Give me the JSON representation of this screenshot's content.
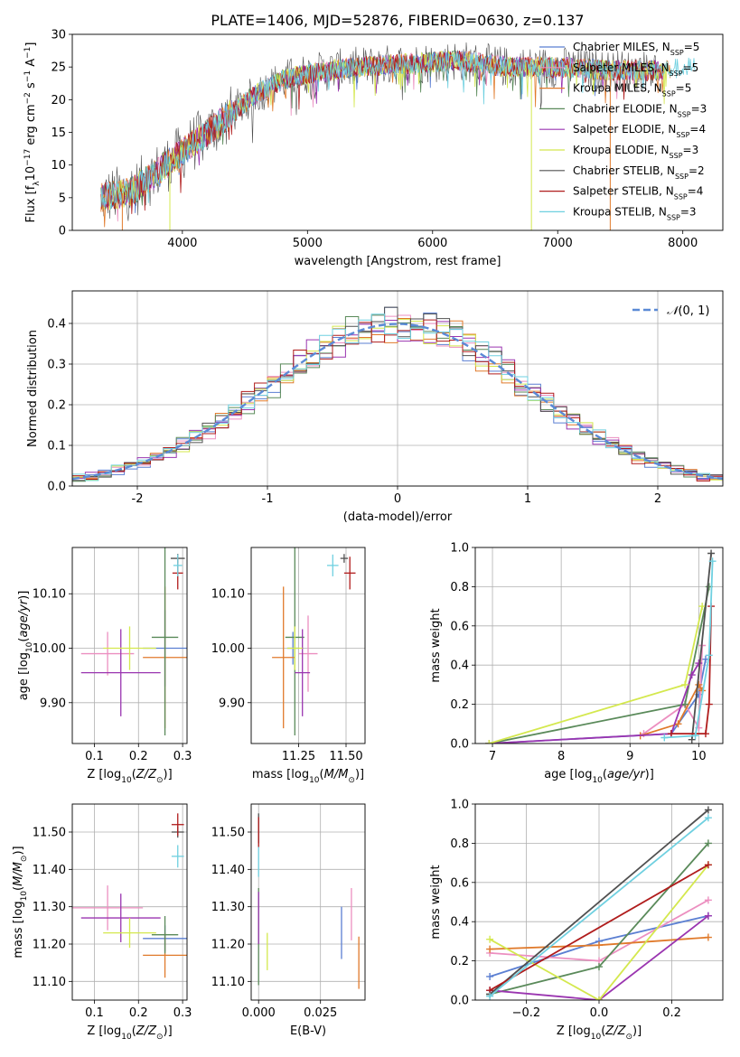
{
  "figure_title": "PLATE=1406, MJD=52876, FIBERID=0630, z=0.137",
  "models": [
    {
      "label": "Chabrier MILES, N$_{SSP}$=5",
      "label_text": "Chabrier MILES, N",
      "sub": "SSP",
      "suffix": "=5",
      "color": "#5b7fd2"
    },
    {
      "label_text": "Salpeter MILES, N",
      "sub": "SSP",
      "suffix": "=5",
      "color": "#ec8fc0"
    },
    {
      "label_text": "Kroupa MILES, N",
      "sub": "SSP",
      "suffix": "=5",
      "color": "#e07a2b"
    },
    {
      "label_text": "Chabrier ELODIE, N",
      "sub": "SSP",
      "suffix": "=3",
      "color": "#5a8a5a"
    },
    {
      "label_text": "Salpeter ELODIE, N",
      "sub": "SSP",
      "suffix": "=4",
      "color": "#9a35b0"
    },
    {
      "label_text": "Kroupa ELODIE, N",
      "sub": "SSP",
      "suffix": "=3",
      "color": "#d4e84e"
    },
    {
      "label_text": "Chabrier STELIB, N",
      "sub": "SSP",
      "suffix": "=2",
      "color": "#505050"
    },
    {
      "label_text": "Salpeter STELIB, N",
      "sub": "SSP",
      "suffix": "=4",
      "color": "#b01c1c"
    },
    {
      "label_text": "Kroupa STELIB, N",
      "sub": "SSP",
      "suffix": "=3",
      "color": "#6fd0e0"
    }
  ],
  "chart_data": [
    {
      "id": "spectrum",
      "type": "line",
      "xlabel": "wavelength [Angstrom, rest frame]",
      "ylabel": "Flux [f_λ10^-17 erg cm^-2 s^-1 A^-1]",
      "xlim": [
        3120,
        8320
      ],
      "ylim": [
        0,
        30
      ],
      "xticks": [
        4000,
        5000,
        6000,
        7000,
        8000
      ],
      "yticks": [
        0,
        5,
        10,
        15,
        20,
        25,
        30
      ],
      "grid": false,
      "legend_position": "top-right",
      "continuum_points": [
        [
          3350,
          5
        ],
        [
          3600,
          6
        ],
        [
          3800,
          9
        ],
        [
          4000,
          12
        ],
        [
          4200,
          15
        ],
        [
          4400,
          18
        ],
        [
          4600,
          21
        ],
        [
          4800,
          23
        ],
        [
          5000,
          24
        ],
        [
          5200,
          24.5
        ],
        [
          5400,
          25
        ],
        [
          5800,
          25.5
        ],
        [
          6200,
          26
        ],
        [
          6600,
          25
        ],
        [
          7000,
          25
        ],
        [
          7400,
          24.5
        ],
        [
          7800,
          24.5
        ],
        [
          8100,
          25
        ]
      ],
      "spikes_down_at": [
        [
          3520,
          0
        ],
        [
          3900,
          0
        ],
        [
          6790,
          0
        ],
        [
          7420,
          0
        ]
      ]
    },
    {
      "id": "residual-histogram",
      "type": "histogram",
      "xlabel": "(data-model)/error",
      "ylabel": "Normed distribution",
      "xlim": [
        -2.5,
        2.5
      ],
      "ylim": [
        0,
        0.48
      ],
      "xticks": [
        -2,
        -1,
        0,
        1,
        2
      ],
      "yticks": [
        0.0,
        0.1,
        0.2,
        0.3,
        0.4
      ],
      "grid": true,
      "bin_width": 0.1,
      "reference_curve": {
        "name": "N(0,1)",
        "label_text": "(0, 1)",
        "style": "dashed",
        "color": "#5b8ad6"
      },
      "legend_position": "top-right"
    },
    {
      "id": "age-vs-Z",
      "type": "errorbar",
      "xlabel": "Z [log10(Z/Z_sun)]",
      "ylabel": "age [log10(age/yr)]",
      "xlim": [
        0.05,
        0.31
      ],
      "ylim": [
        9.825,
        10.185
      ],
      "xticks": [
        0.1,
        0.2,
        0.3
      ],
      "yticks": [
        9.9,
        10.0,
        10.1
      ],
      "points": [
        {
          "m": 0,
          "x": 0.26,
          "y": 10.0,
          "xe": 0.05,
          "ye": 0.07
        },
        {
          "m": 1,
          "x": 0.13,
          "y": 9.99,
          "xe": 0.06,
          "ye": 0.04
        },
        {
          "m": 2,
          "x": 0.26,
          "y": 9.983,
          "xe": 0.05,
          "ye": 0.13
        },
        {
          "m": 3,
          "x": 0.26,
          "y": 10.02,
          "xe": 0.03,
          "ye": 0.18
        },
        {
          "m": 4,
          "x": 0.16,
          "y": 9.955,
          "xe": 0.09,
          "ye": 0.08
        },
        {
          "m": 5,
          "x": 0.18,
          "y": 10.0,
          "xe": 0.06,
          "ye": 0.04
        },
        {
          "m": 6,
          "x": 0.289,
          "y": 10.165,
          "xe": 0.016,
          "ye": 0.008
        },
        {
          "m": 7,
          "x": 0.289,
          "y": 10.138,
          "xe": 0.012,
          "ye": 0.03
        },
        {
          "m": 8,
          "x": 0.289,
          "y": 10.152,
          "xe": 0.01,
          "ye": 0.02
        }
      ]
    },
    {
      "id": "age-vs-mass",
      "type": "errorbar",
      "xlabel": "mass [log10(M/M_sun)]",
      "ylabel": "",
      "xlim": [
        11.0,
        11.6
      ],
      "ylim": [
        9.825,
        10.185
      ],
      "xticks": [
        11.25,
        11.5
      ],
      "xticklabels": [
        "11.25",
        "11.50"
      ],
      "yticks": [
        9.9,
        10.0,
        10.1
      ],
      "points": [
        {
          "m": 0,
          "x": 11.22,
          "y": 10.0,
          "xe": 0.03,
          "ye": 0.03
        },
        {
          "m": 1,
          "x": 11.3,
          "y": 9.99,
          "xe": 0.05,
          "ye": 0.07
        },
        {
          "m": 2,
          "x": 11.17,
          "y": 9.983,
          "xe": 0.06,
          "ye": 0.13
        },
        {
          "m": 3,
          "x": 11.23,
          "y": 10.02,
          "xe": 0.05,
          "ye": 0.18
        },
        {
          "m": 4,
          "x": 11.27,
          "y": 9.955,
          "xe": 0.04,
          "ye": 0.08
        },
        {
          "m": 5,
          "x": 11.23,
          "y": 10.0,
          "xe": 0.04,
          "ye": 0.04
        },
        {
          "m": 6,
          "x": 11.49,
          "y": 10.165,
          "xe": 0.02,
          "ye": 0.008
        },
        {
          "m": 7,
          "x": 11.52,
          "y": 10.138,
          "xe": 0.03,
          "ye": 0.03
        },
        {
          "m": 8,
          "x": 11.43,
          "y": 10.152,
          "xe": 0.03,
          "ye": 0.02
        }
      ]
    },
    {
      "id": "mass-weight-vs-age",
      "type": "line",
      "xlabel": "age [log10(age/yr)]",
      "ylabel": "mass weight",
      "xlim": [
        6.75,
        10.35
      ],
      "ylim": [
        0.0,
        1.0
      ],
      "xticks": [
        7,
        8,
        9,
        10
      ],
      "yticks": [
        0.0,
        0.2,
        0.4,
        0.6,
        0.8,
        1.0
      ],
      "grid": true,
      "series": [
        {
          "m": 0,
          "x": [
            6.95,
            9.6,
            10.0,
            10.1
          ],
          "y": [
            0.0,
            0.05,
            0.25,
            0.43
          ]
        },
        {
          "m": 1,
          "x": [
            9.2,
            9.8,
            10.0,
            10.05
          ],
          "y": [
            0.05,
            0.2,
            0.08,
            0.5
          ]
        },
        {
          "m": 2,
          "x": [
            9.15,
            9.7,
            10.0,
            10.05
          ],
          "y": [
            0.04,
            0.1,
            0.3,
            0.27
          ]
        },
        {
          "m": 3,
          "x": [
            6.95,
            9.8,
            10.15
          ],
          "y": [
            0.0,
            0.2,
            0.8
          ]
        },
        {
          "m": 4,
          "x": [
            6.95,
            9.6,
            9.9,
            10.0
          ],
          "y": [
            0.0,
            0.05,
            0.35,
            0.41
          ]
        },
        {
          "m": 5,
          "x": [
            6.95,
            9.8,
            10.05
          ],
          "y": [
            0.0,
            0.3,
            0.7
          ]
        },
        {
          "m": 6,
          "x": [
            9.9,
            10.18
          ],
          "y": [
            0.02,
            0.97
          ]
        },
        {
          "m": 7,
          "x": [
            9.6,
            10.1,
            10.15,
            10.18
          ],
          "y": [
            0.05,
            0.05,
            0.2,
            0.7
          ]
        },
        {
          "m": 8,
          "x": [
            9.5,
            9.95,
            10.15,
            10.2
          ],
          "y": [
            0.03,
            0.04,
            0.45,
            0.93
          ]
        }
      ]
    },
    {
      "id": "mass-vs-Z",
      "type": "errorbar",
      "xlabel": "Z [log10(Z/Z_sun)]",
      "ylabel": "mass [log10(M/M_sun)]",
      "xlim": [
        0.05,
        0.31
      ],
      "ylim": [
        11.05,
        11.575
      ],
      "xticks": [
        0.1,
        0.2,
        0.3
      ],
      "yticks": [
        11.1,
        11.2,
        11.3,
        11.4,
        11.5
      ],
      "points": [
        {
          "m": 0,
          "x": 0.26,
          "y": 11.215,
          "xe": 0.05,
          "ye": 0.035
        },
        {
          "m": 1,
          "x": 0.13,
          "y": 11.297,
          "xe": 0.08,
          "ye": 0.06
        },
        {
          "m": 2,
          "x": 0.26,
          "y": 11.17,
          "xe": 0.05,
          "ye": 0.06
        },
        {
          "m": 3,
          "x": 0.26,
          "y": 11.225,
          "xe": 0.03,
          "ye": 0.05
        },
        {
          "m": 4,
          "x": 0.16,
          "y": 11.27,
          "xe": 0.09,
          "ye": 0.065
        },
        {
          "m": 5,
          "x": 0.18,
          "y": 11.23,
          "xe": 0.06,
          "ye": 0.04
        },
        {
          "m": 6,
          "x": 0.289,
          "y": 11.5,
          "xe": 0.014,
          "ye": 0.015
        },
        {
          "m": 7,
          "x": 0.289,
          "y": 11.52,
          "xe": 0.014,
          "ye": 0.03
        },
        {
          "m": 8,
          "x": 0.289,
          "y": 11.435,
          "xe": 0.014,
          "ye": 0.03
        }
      ]
    },
    {
      "id": "mass-vs-EBV",
      "type": "errorbar",
      "xlabel": "E(B-V)",
      "ylabel": "",
      "xlim": [
        -0.003,
        0.043
      ],
      "ylim": [
        11.05,
        11.575
      ],
      "xticks": [
        0.0,
        0.025
      ],
      "xticklabels": [
        "0.000",
        "0.025"
      ],
      "yticks": [
        11.1,
        11.2,
        11.3,
        11.4,
        11.5
      ],
      "points": [
        {
          "m": 0,
          "x": 0.0335,
          "y": 11.23,
          "xe": 0,
          "ye": 0.07
        },
        {
          "m": 1,
          "x": 0.0375,
          "y": 11.28,
          "xe": 0,
          "ye": 0.07
        },
        {
          "m": 2,
          "x": 0.0405,
          "y": 11.15,
          "xe": 0,
          "ye": 0.07
        },
        {
          "m": 3,
          "x": 0.0,
          "y": 11.22,
          "xe": 0,
          "ye": 0.13
        },
        {
          "m": 4,
          "x": 0.0,
          "y": 11.27,
          "xe": 0,
          "ye": 0.07
        },
        {
          "m": 5,
          "x": 0.0035,
          "y": 11.18,
          "xe": 0,
          "ye": 0.05
        },
        {
          "m": 6,
          "x": 0.0,
          "y": 11.51,
          "xe": 0,
          "ye": 0.04
        },
        {
          "m": 7,
          "x": 0.0,
          "y": 11.5,
          "xe": 0,
          "ye": 0.04
        },
        {
          "m": 8,
          "x": 0.0,
          "y": 11.42,
          "xe": 0,
          "ye": 0.04
        }
      ]
    },
    {
      "id": "mass-weight-vs-Z",
      "type": "line",
      "xlabel": "Z [log10(Z/Z_sun)]",
      "ylabel": "mass weight",
      "xlim": [
        -0.34,
        0.34
      ],
      "ylim": [
        0.0,
        1.0
      ],
      "xticks": [
        -0.2,
        0.0,
        0.2
      ],
      "xticklabels": [
        "−0.2",
        "0.0",
        "0.2"
      ],
      "yticks": [
        0.0,
        0.2,
        0.4,
        0.6,
        0.8,
        1.0
      ],
      "grid": true,
      "series": [
        {
          "m": 0,
          "x": [
            -0.3,
            0.0,
            0.3
          ],
          "y": [
            0.12,
            0.3,
            0.43
          ]
        },
        {
          "m": 1,
          "x": [
            -0.3,
            0.0,
            0.3
          ],
          "y": [
            0.24,
            0.2,
            0.51
          ]
        },
        {
          "m": 2,
          "x": [
            -0.3,
            0.0,
            0.3
          ],
          "y": [
            0.26,
            0.28,
            0.32
          ]
        },
        {
          "m": 3,
          "x": [
            -0.3,
            0.0,
            0.3
          ],
          "y": [
            0.03,
            0.17,
            0.8
          ]
        },
        {
          "m": 4,
          "x": [
            -0.3,
            0.0,
            0.3
          ],
          "y": [
            0.05,
            0.0,
            0.43
          ]
        },
        {
          "m": 5,
          "x": [
            -0.3,
            0.0,
            0.3
          ],
          "y": [
            0.31,
            0.0,
            0.69
          ]
        },
        {
          "m": 6,
          "x": [
            -0.3,
            0.3
          ],
          "y": [
            0.03,
            0.97
          ]
        },
        {
          "m": 7,
          "x": [
            -0.3,
            0.3
          ],
          "y": [
            0.05,
            0.69
          ]
        },
        {
          "m": 8,
          "x": [
            -0.3,
            0.3
          ],
          "y": [
            0.02,
            0.93
          ]
        }
      ]
    }
  ]
}
